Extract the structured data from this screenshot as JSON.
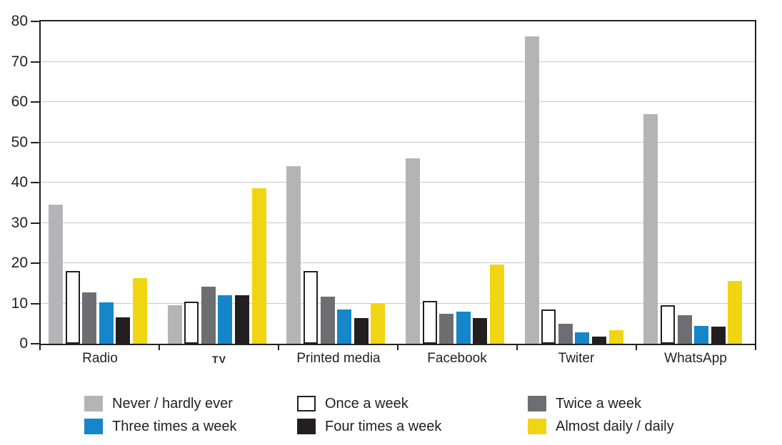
{
  "chart_data": {
    "type": "bar",
    "title": "",
    "xlabel": "",
    "ylabel": "",
    "categories": [
      "Radio",
      "TV",
      "Printed media",
      "Facebook",
      "Twiter",
      "WhatsApp"
    ],
    "series": [
      {
        "name": "Never / hardly ever",
        "color": "#b4b4b6",
        "values": [
          34.5,
          9.5,
          44.0,
          46.0,
          76.3,
          57.0
        ]
      },
      {
        "name": "Once a week",
        "color": "#ffffff",
        "border": "#231f20",
        "values": [
          18.0,
          10.5,
          18.0,
          10.6,
          8.5,
          9.6
        ]
      },
      {
        "name": "Twice a week",
        "color": "#6d6e71",
        "values": [
          12.7,
          14.2,
          11.7,
          7.5,
          4.9,
          7.0
        ]
      },
      {
        "name": "Three times a week",
        "color": "#1486c9",
        "values": [
          10.2,
          12.0,
          8.5,
          8.0,
          2.8,
          4.4
        ]
      },
      {
        "name": "Four times a week",
        "color": "#231f20",
        "values": [
          6.5,
          12.1,
          6.4,
          6.3,
          1.7,
          4.3
        ]
      },
      {
        "name": "Almost daily / daily",
        "color": "#f0d513",
        "values": [
          16.3,
          38.6,
          9.9,
          19.7,
          3.3,
          15.5
        ]
      }
    ],
    "ylim": [
      0,
      80
    ],
    "yticks": [
      0,
      10,
      20,
      30,
      40,
      50,
      60,
      70,
      80
    ],
    "grid": true,
    "legend_position": "bottom",
    "axis_color": "#231f20",
    "gridline_color": "#c9c9c9",
    "background": "#ffffff"
  }
}
